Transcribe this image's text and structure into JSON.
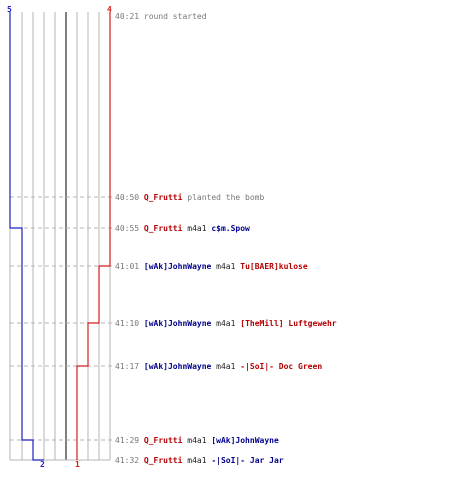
{
  "colors": {
    "team_blue": "#1f1fbf",
    "team_red": "#d21f1f",
    "blue_text": "#00008b",
    "red_text": "#b50000",
    "time_text": "#777777",
    "grid": "#b5b5b5",
    "divider": "#808080"
  },
  "team_counts": {
    "blue_start": "5",
    "red_start": "4",
    "blue_end": "2",
    "red_end": "1"
  },
  "events": [
    {
      "time": "40:21",
      "kind": "info",
      "text": "round started"
    },
    {
      "time": "40:50",
      "kind": "info",
      "actor": "Q_Frutti",
      "actor_team": "red",
      "text": "planted the bomb"
    },
    {
      "time": "40:55",
      "kind": "kill",
      "killer": "Q_Frutti",
      "killer_team": "red",
      "weapon": "m4a1",
      "victim": "c$m.Spow",
      "victim_team": "blue"
    },
    {
      "time": "41:01",
      "kind": "kill",
      "killer": "[wAk]JohnWayne",
      "killer_team": "blue",
      "weapon": "m4a1",
      "victim": "Tu[BAER]kulose",
      "victim_team": "red"
    },
    {
      "time": "41:10",
      "kind": "kill",
      "killer": "[wAk]JohnWayne",
      "killer_team": "blue",
      "weapon": "m4a1",
      "victim": "[TheMill] Luftgewehr",
      "victim_team": "red"
    },
    {
      "time": "41:17",
      "kind": "kill",
      "killer": "[wAk]JohnWayne",
      "killer_team": "blue",
      "weapon": "m4a1",
      "victim": "-|SoI|- Doc Green",
      "victim_team": "red"
    },
    {
      "time": "41:29",
      "kind": "kill",
      "killer": "Q_Frutti",
      "killer_team": "red",
      "weapon": "m4a1",
      "victim": "[wAk]JohnWayne",
      "victim_team": "blue"
    },
    {
      "time": "41:32",
      "kind": "kill",
      "killer": "Q_Frutti",
      "killer_team": "red",
      "weapon": "m4a1",
      "victim": "-|SoI|- Jar Jar",
      "victim_team": "blue"
    }
  ]
}
